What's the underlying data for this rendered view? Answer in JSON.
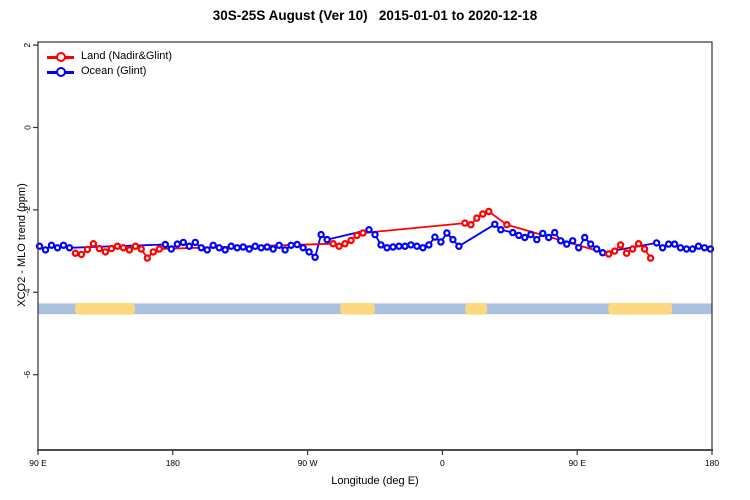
{
  "page": {
    "background": "#ffffff"
  },
  "chart": {
    "title": "30S-25S August (Ver 10)   2015-01-01 to 2020-12-18",
    "xlabel": "Longitude (deg E)",
    "ylabel": "XCO2 - MLO trend (ppm)",
    "legend": [
      {
        "id": "land",
        "label": "Land (Nadir&Glint)",
        "color": "#ff0000"
      },
      {
        "id": "ocean",
        "label": "Ocean (Glint)",
        "color": "#0000ff"
      }
    ]
  },
  "chart_data": {
    "type": "line",
    "title": "30S-25S August (Ver 10)   2015-01-01 to 2020-12-18",
    "xlabel": "Longitude (deg E)",
    "ylabel": "XCO2 - MLO trend (ppm)",
    "grid": false,
    "legend_position": "top-left",
    "x_axis": {
      "description": "longitude wrapping eastward from 90E, 450 degree span",
      "span_deg": 450,
      "ticks": [
        {
          "offset_deg": 0,
          "label": "90 E"
        },
        {
          "offset_deg": 90,
          "label": "180"
        },
        {
          "offset_deg": 180,
          "label": "90 W"
        },
        {
          "offset_deg": 270,
          "label": "0"
        },
        {
          "offset_deg": 360,
          "label": "90 E"
        },
        {
          "offset_deg": 450,
          "label": "180"
        }
      ]
    },
    "y_axis": {
      "ticks": [
        2,
        0,
        -2,
        -4,
        -6
      ],
      "range": [
        -7.8,
        2.1
      ],
      "unit": "ppm"
    },
    "series": [
      {
        "name": "Ocean (Glint)",
        "color": "#0000ff",
        "marker": "open-circle",
        "points": [
          [
            1,
            -2.88
          ],
          [
            5,
            -2.97
          ],
          [
            9,
            -2.86
          ],
          [
            13,
            -2.92
          ],
          [
            17,
            -2.86
          ],
          [
            21,
            -2.92
          ],
          [
            85,
            -2.84
          ],
          [
            89,
            -2.95
          ],
          [
            93,
            -2.83
          ],
          [
            97,
            -2.79
          ],
          [
            101,
            -2.88
          ],
          [
            105,
            -2.79
          ],
          [
            109,
            -2.92
          ],
          [
            113,
            -2.97
          ],
          [
            117,
            -2.86
          ],
          [
            121,
            -2.92
          ],
          [
            125,
            -2.97
          ],
          [
            129,
            -2.88
          ],
          [
            133,
            -2.92
          ],
          [
            137,
            -2.9
          ],
          [
            141,
            -2.95
          ],
          [
            145,
            -2.88
          ],
          [
            149,
            -2.92
          ],
          [
            153,
            -2.9
          ],
          [
            157,
            -2.95
          ],
          [
            161,
            -2.86
          ],
          [
            165,
            -2.97
          ],
          [
            169,
            -2.86
          ],
          [
            173,
            -2.84
          ],
          [
            177,
            -2.92
          ],
          [
            181,
            -3.02
          ],
          [
            185,
            -3.15
          ],
          [
            189,
            -2.6
          ],
          [
            193,
            -2.72
          ],
          [
            221,
            -2.48
          ],
          [
            225,
            -2.6
          ],
          [
            229,
            -2.85
          ],
          [
            233,
            -2.92
          ],
          [
            237,
            -2.9
          ],
          [
            241,
            -2.88
          ],
          [
            245,
            -2.88
          ],
          [
            249,
            -2.85
          ],
          [
            253,
            -2.88
          ],
          [
            257,
            -2.92
          ],
          [
            261,
            -2.85
          ],
          [
            265,
            -2.66
          ],
          [
            269,
            -2.78
          ],
          [
            273,
            -2.56
          ],
          [
            277,
            -2.72
          ],
          [
            281,
            -2.88
          ],
          [
            305,
            -2.35
          ],
          [
            309,
            -2.48
          ],
          [
            317,
            -2.55
          ],
          [
            321,
            -2.62
          ],
          [
            325,
            -2.67
          ],
          [
            329,
            -2.6
          ],
          [
            333,
            -2.72
          ],
          [
            337,
            -2.57
          ],
          [
            341,
            -2.67
          ],
          [
            345,
            -2.55
          ],
          [
            349,
            -2.75
          ],
          [
            353,
            -2.83
          ],
          [
            357,
            -2.75
          ],
          [
            361,
            -2.92
          ],
          [
            365,
            -2.67
          ],
          [
            369,
            -2.83
          ],
          [
            373,
            -2.95
          ],
          [
            377,
            -3.04
          ],
          [
            413,
            -2.8
          ],
          [
            417,
            -2.92
          ],
          [
            421,
            -2.83
          ],
          [
            425,
            -2.83
          ],
          [
            429,
            -2.92
          ],
          [
            433,
            -2.95
          ],
          [
            437,
            -2.95
          ],
          [
            441,
            -2.88
          ],
          [
            445,
            -2.92
          ],
          [
            449,
            -2.95
          ]
        ]
      },
      {
        "name": "Land (Nadir&Glint)",
        "color": "#ff0000",
        "marker": "open-circle",
        "points": [
          [
            25,
            -3.05
          ],
          [
            29,
            -3.08
          ],
          [
            33,
            -2.96
          ],
          [
            37,
            -2.82
          ],
          [
            41,
            -2.94
          ],
          [
            45,
            -3.02
          ],
          [
            49,
            -2.94
          ],
          [
            53,
            -2.88
          ],
          [
            57,
            -2.92
          ],
          [
            61,
            -2.97
          ],
          [
            65,
            -2.88
          ],
          [
            69,
            -2.95
          ],
          [
            73,
            -3.17
          ],
          [
            77,
            -3.02
          ],
          [
            81,
            -2.95
          ],
          [
            197,
            -2.82
          ],
          [
            201,
            -2.88
          ],
          [
            205,
            -2.82
          ],
          [
            209,
            -2.74
          ],
          [
            213,
            -2.62
          ],
          [
            217,
            -2.56
          ],
          [
            285,
            -2.32
          ],
          [
            289,
            -2.36
          ],
          [
            293,
            -2.2
          ],
          [
            297,
            -2.1
          ],
          [
            301,
            -2.04
          ],
          [
            313,
            -2.36
          ],
          [
            381,
            -3.07
          ],
          [
            385,
            -3.0
          ],
          [
            389,
            -2.85
          ],
          [
            393,
            -3.05
          ],
          [
            397,
            -2.95
          ],
          [
            401,
            -2.82
          ],
          [
            405,
            -2.95
          ],
          [
            409,
            -3.17
          ]
        ]
      }
    ],
    "surface_band": {
      "description": "land/ocean indicator strip along longitude",
      "center_value": -4.4,
      "ocean_color": "#a9c0de",
      "land_color": "#fcd87e",
      "ocean_extent_deg": [
        0,
        450
      ],
      "land_segments_deg": [
        [
          24.7,
          64.8
        ],
        [
          201.7,
          225.0
        ],
        [
          285.2,
          299.9
        ],
        [
          380.7,
          423.4
        ]
      ]
    }
  }
}
